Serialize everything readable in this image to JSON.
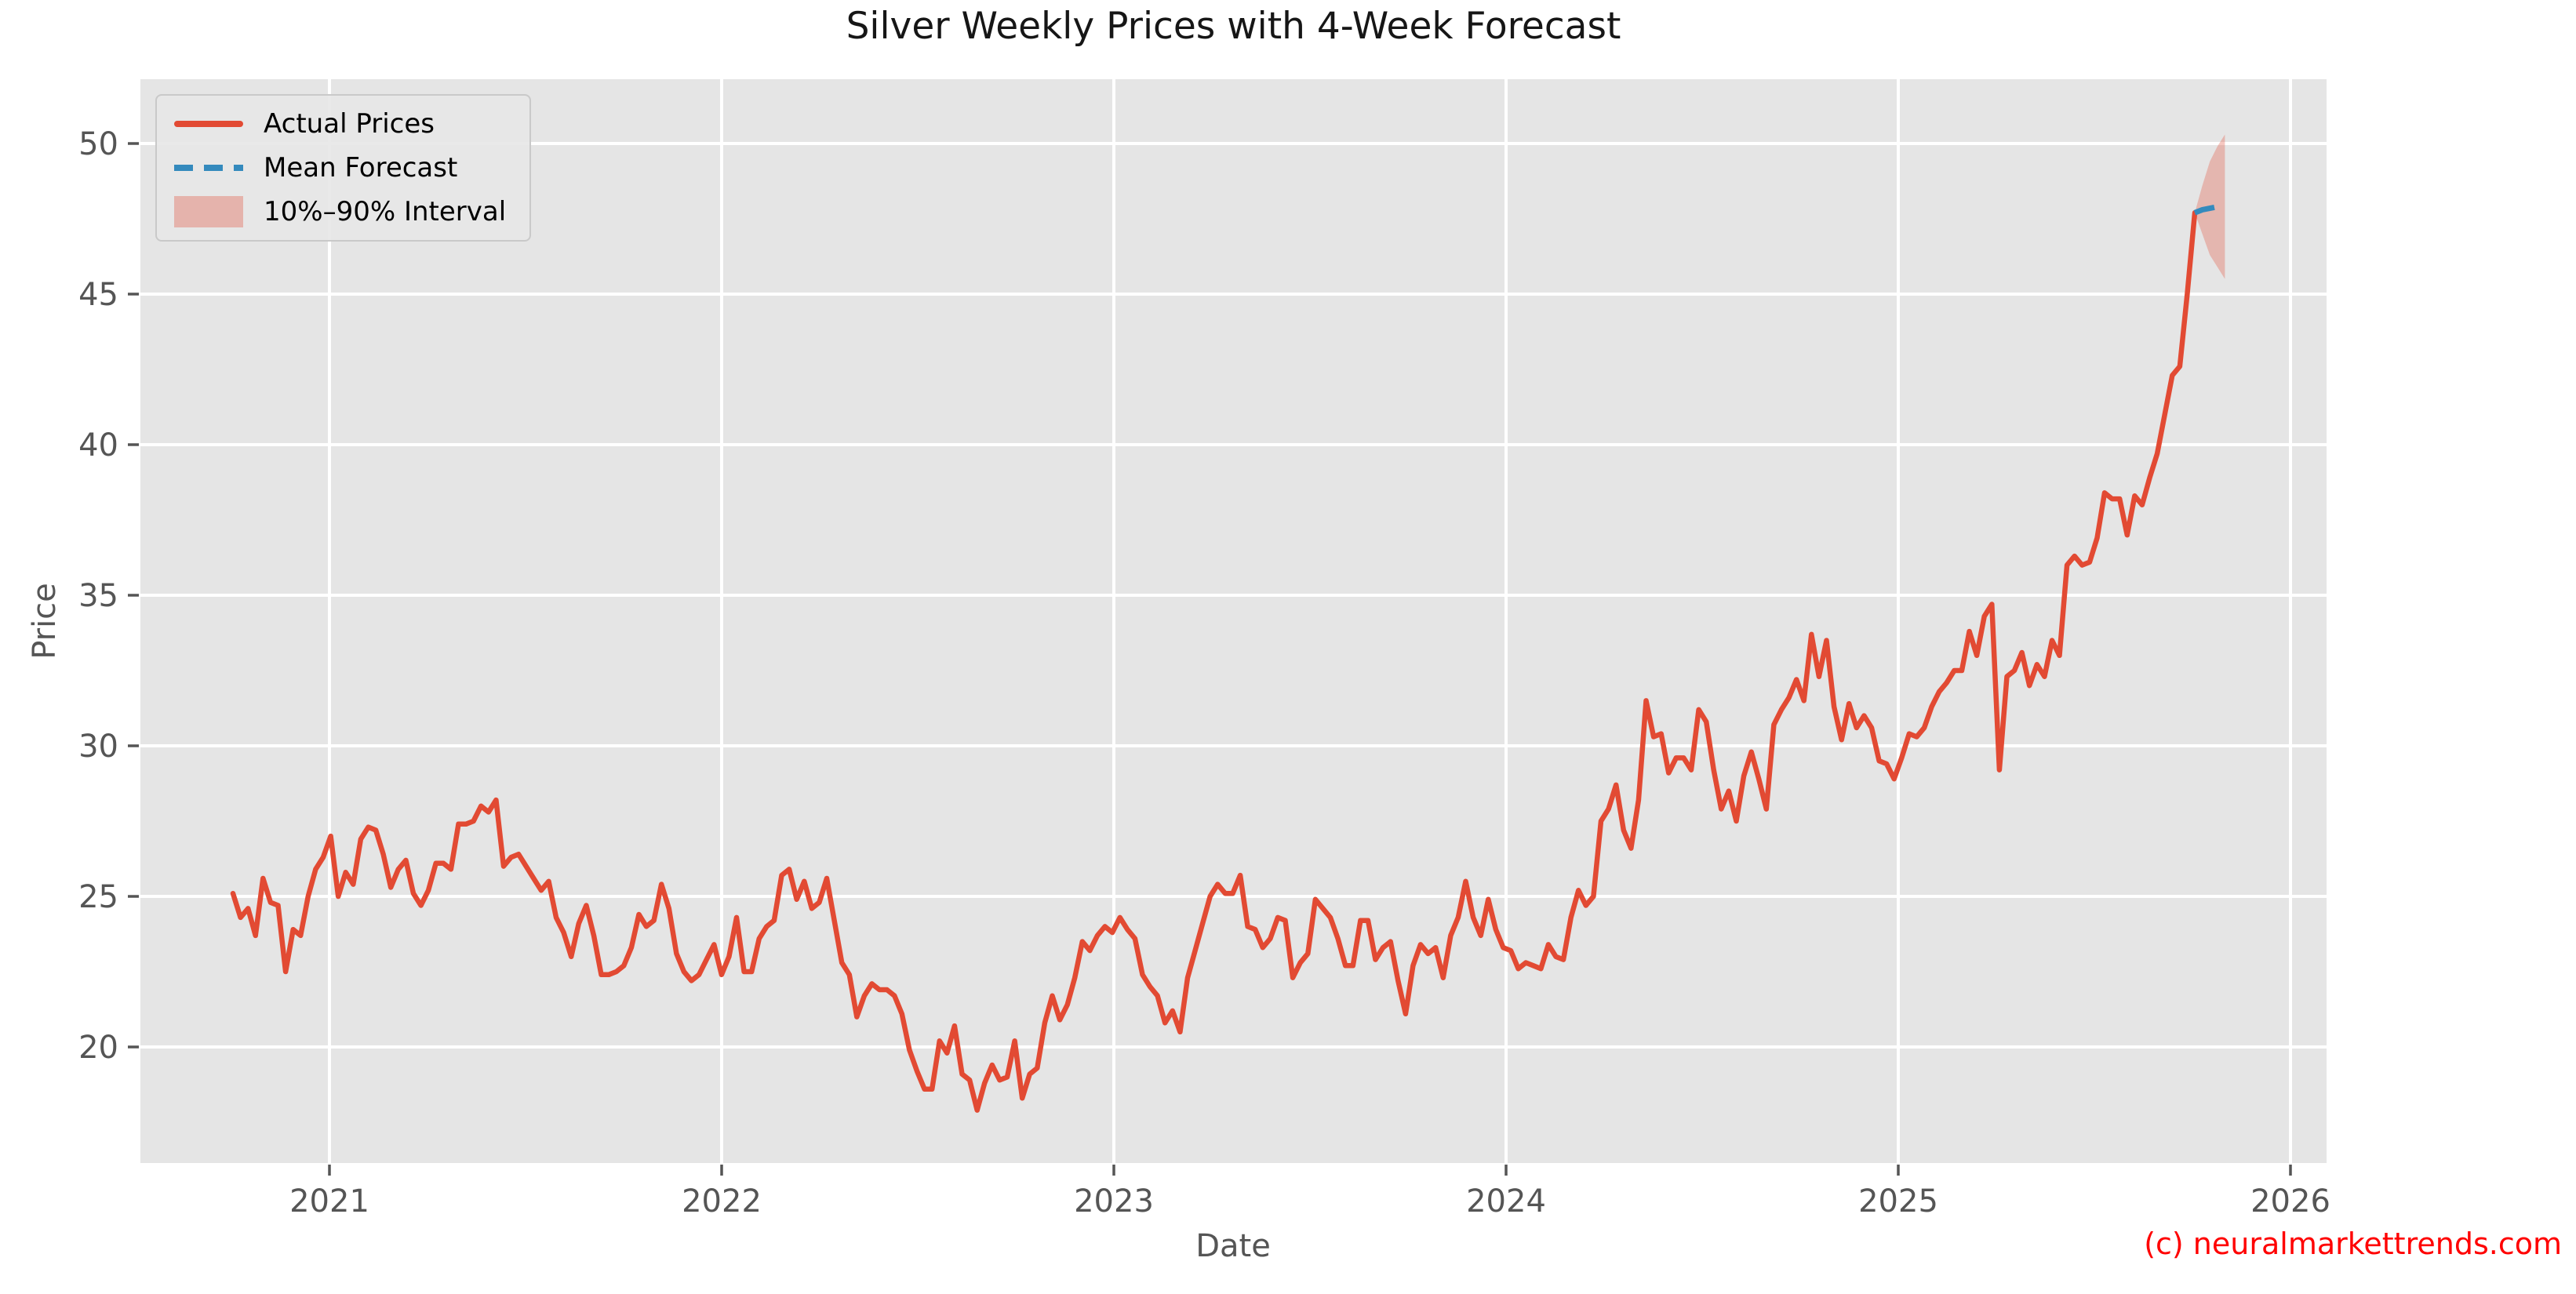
{
  "figure": {
    "watermark": "(c) neuralmarkettrends.com",
    "watermark_color": "#ff0000"
  },
  "legend": {
    "position": "upper left",
    "items": [
      {
        "label": "Actual Prices",
        "swatch": "red-solid-line",
        "color": "#e24a33"
      },
      {
        "label": "Mean Forecast",
        "swatch": "blue-dashed-line",
        "color": "#348abd"
      },
      {
        "label": "10%–90% Interval",
        "swatch": "pink-filled-band",
        "color": "rgba(226,74,51,0.33)"
      }
    ]
  },
  "chart_data": {
    "type": "line",
    "title": "Silver Weekly Prices with 4-Week Forecast",
    "xlabel": "Date",
    "ylabel": "Price",
    "grid": true,
    "plot_bg": "#e5e5e5",
    "grid_color": "#ffffff",
    "tick_color": "#555555",
    "x_ticks": [
      2021,
      2022,
      2023,
      2024,
      2025,
      2026
    ],
    "x_tick_labels": [
      "2021",
      "2022",
      "2023",
      "2024",
      "2025",
      "2026"
    ],
    "y_ticks": [
      20,
      25,
      30,
      35,
      40,
      45,
      50
    ],
    "y_tick_labels": [
      "20",
      "25",
      "30",
      "35",
      "40",
      "45",
      "50"
    ],
    "xlim_years": [
      2020.52,
      2026.09
    ],
    "ylim": [
      16.1,
      52.1
    ],
    "start_date": "2020-10-05",
    "frequency": "weekly",
    "series": [
      {
        "name": "Actual Prices",
        "color": "#e24a33",
        "style": "solid",
        "values": [
          25.1,
          24.3,
          24.6,
          23.7,
          25.6,
          24.8,
          24.7,
          22.5,
          23.9,
          23.7,
          25.0,
          25.9,
          26.3,
          27.0,
          25.0,
          25.8,
          25.4,
          26.9,
          27.3,
          27.2,
          26.4,
          25.3,
          25.9,
          26.2,
          25.1,
          24.7,
          25.2,
          26.1,
          26.1,
          25.9,
          27.4,
          27.4,
          27.5,
          28.0,
          27.8,
          28.2,
          26.0,
          26.3,
          26.4,
          26.0,
          25.6,
          25.2,
          25.5,
          24.3,
          23.8,
          23.0,
          24.1,
          24.7,
          23.7,
          22.4,
          22.4,
          22.5,
          22.7,
          23.3,
          24.4,
          24.0,
          24.2,
          25.4,
          24.6,
          23.1,
          22.5,
          22.2,
          22.4,
          22.9,
          23.4,
          22.4,
          23.0,
          24.3,
          22.5,
          22.5,
          23.6,
          24.0,
          24.2,
          25.7,
          25.9,
          24.9,
          25.5,
          24.6,
          24.8,
          25.6,
          24.2,
          22.8,
          22.4,
          21.0,
          21.7,
          22.1,
          21.9,
          21.9,
          21.7,
          21.1,
          19.9,
          19.2,
          18.6,
          18.6,
          20.2,
          19.8,
          20.7,
          19.1,
          18.9,
          17.9,
          18.8,
          19.4,
          18.9,
          19.0,
          20.2,
          18.3,
          19.1,
          19.3,
          20.8,
          21.7,
          20.9,
          21.4,
          22.3,
          23.5,
          23.2,
          23.7,
          24.0,
          23.8,
          24.3,
          23.9,
          23.6,
          22.4,
          22.0,
          21.7,
          20.8,
          21.2,
          20.5,
          22.3,
          23.2,
          24.1,
          25.0,
          25.4,
          25.1,
          25.1,
          25.7,
          24.0,
          23.9,
          23.3,
          23.6,
          24.3,
          24.2,
          22.3,
          22.8,
          23.1,
          24.9,
          24.6,
          24.3,
          23.6,
          22.7,
          22.7,
          24.2,
          24.2,
          22.9,
          23.3,
          23.5,
          22.2,
          21.1,
          22.7,
          23.4,
          23.1,
          23.3,
          22.3,
          23.7,
          24.3,
          25.5,
          24.3,
          23.7,
          24.9,
          23.9,
          23.3,
          23.2,
          22.6,
          22.8,
          22.7,
          22.6,
          23.4,
          23.0,
          22.9,
          24.3,
          25.2,
          24.7,
          25.0,
          27.5,
          27.9,
          28.7,
          27.2,
          26.6,
          28.2,
          31.5,
          30.3,
          30.4,
          29.1,
          29.6,
          29.6,
          29.2,
          31.2,
          30.8,
          29.2,
          27.9,
          28.5,
          27.5,
          29.0,
          29.8,
          28.9,
          27.9,
          30.7,
          31.2,
          31.6,
          32.2,
          31.5,
          33.7,
          32.3,
          33.5,
          31.3,
          30.2,
          31.4,
          30.6,
          31.0,
          30.6,
          29.5,
          29.4,
          28.9,
          29.6,
          30.4,
          30.3,
          30.6,
          31.3,
          31.8,
          32.1,
          32.5,
          32.5,
          33.8,
          33.0,
          34.3,
          34.7,
          29.2,
          32.3,
          32.5,
          33.1,
          32.0,
          32.7,
          32.3,
          33.5,
          33.0,
          36.0,
          36.3,
          36.0,
          36.1,
          36.9,
          38.4,
          38.2,
          38.2,
          37.0,
          38.3,
          38.0,
          38.9,
          39.7,
          41.0,
          42.3,
          42.6,
          45.0,
          47.7
        ]
      },
      {
        "name": "Mean Forecast",
        "color": "#348abd",
        "style": "dashed",
        "horizon_weeks": 4,
        "values": [
          47.8,
          47.85,
          47.9,
          47.95
        ]
      }
    ],
    "interval": {
      "name": "10%–90% Interval",
      "color": "#e24a33",
      "opacity": 0.3,
      "legend_color": "rgba(226,74,51,0.33)",
      "lower": [
        47.0,
        46.3,
        45.9,
        45.5
      ],
      "upper": [
        48.6,
        49.4,
        49.9,
        50.3
      ]
    }
  }
}
